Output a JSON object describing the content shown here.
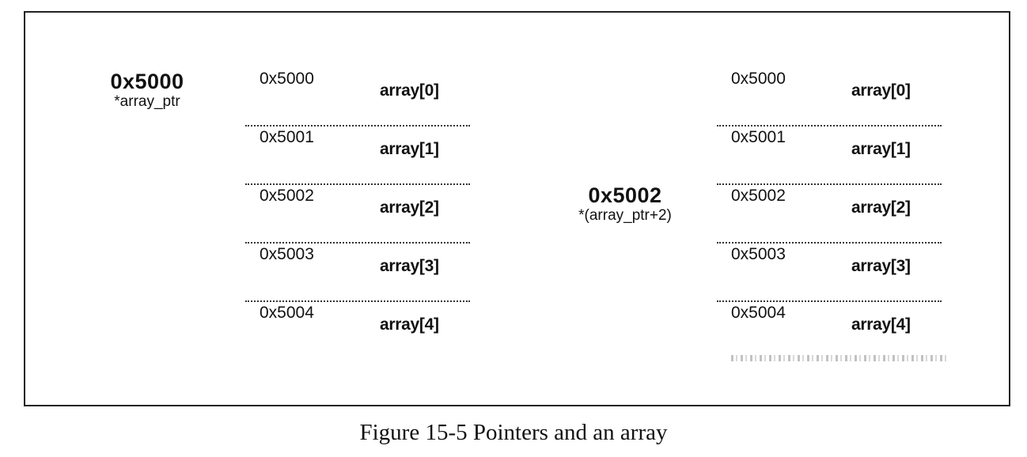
{
  "left_pointer": {
    "address": "0x5000",
    "expression": "*array_ptr"
  },
  "right_pointer": {
    "address": "0x5002",
    "expression": "*(array_ptr+2)"
  },
  "left_memory": [
    {
      "address": "0x5000",
      "element": "array[0]"
    },
    {
      "address": "0x5001",
      "element": "array[1]"
    },
    {
      "address": "0x5002",
      "element": "array[2]"
    },
    {
      "address": "0x5003",
      "element": "array[3]"
    },
    {
      "address": "0x5004",
      "element": "array[4]"
    }
  ],
  "right_memory": [
    {
      "address": "0x5000",
      "element": "array[0]"
    },
    {
      "address": "0x5001",
      "element": "array[1]"
    },
    {
      "address": "0x5002",
      "element": "array[2]"
    },
    {
      "address": "0x5003",
      "element": "array[3]"
    },
    {
      "address": "0x5004",
      "element": "array[4]"
    }
  ],
  "caption": "Figure 15-5 Pointers and an array"
}
